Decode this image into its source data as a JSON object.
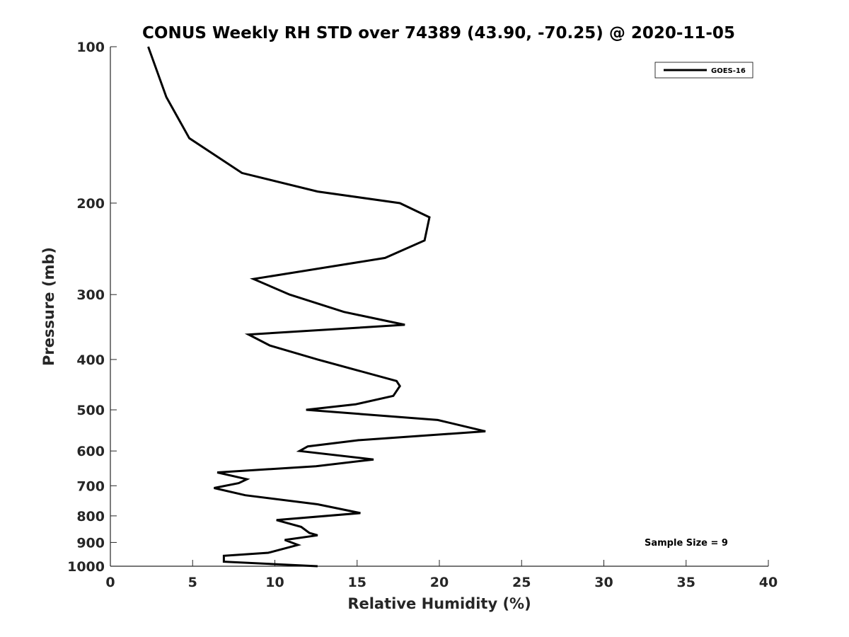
{
  "chart_data": {
    "type": "line",
    "title": "CONUS Weekly RH STD over 74389 (43.90, -70.25) @ 2020-11-05",
    "xlabel": "Relative Humidity (%)",
    "ylabel": "Pressure (mb)",
    "xlim": [
      0,
      40
    ],
    "ylim": [
      100,
      1000
    ],
    "y_scale": "log",
    "y_reversed": true,
    "x_ticks": [
      "0",
      "5",
      "10",
      "15",
      "20",
      "25",
      "30",
      "35",
      "40"
    ],
    "y_ticks": [
      "100",
      "200",
      "300",
      "400",
      "500",
      "600",
      "700",
      "800",
      "900",
      "1000"
    ],
    "grid": false,
    "legend_position": "top-right",
    "annotation": "Sample Size = 9",
    "series": [
      {
        "name": "GOES-16",
        "color": "#000000",
        "points": [
          [
            2.3,
            100
          ],
          [
            3.4,
            125
          ],
          [
            4.8,
            150
          ],
          [
            8.0,
            175
          ],
          [
            12.6,
            190
          ],
          [
            17.6,
            200
          ],
          [
            19.4,
            213
          ],
          [
            19.1,
            236
          ],
          [
            16.7,
            255
          ],
          [
            8.7,
            280
          ],
          [
            10.9,
            300
          ],
          [
            14.2,
            324
          ],
          [
            17.9,
            343
          ],
          [
            8.4,
            358
          ],
          [
            9.7,
            376
          ],
          [
            12.6,
            400
          ],
          [
            17.4,
            440
          ],
          [
            17.6,
            450
          ],
          [
            17.2,
            470
          ],
          [
            14.9,
            488
          ],
          [
            11.9,
            500
          ],
          [
            19.9,
            523
          ],
          [
            22.8,
            550
          ],
          [
            15.1,
            572
          ],
          [
            12.0,
            588
          ],
          [
            11.5,
            600
          ],
          [
            16.0,
            623
          ],
          [
            12.5,
            642
          ],
          [
            6.5,
            660
          ],
          [
            8.3,
            680
          ],
          [
            7.8,
            692
          ],
          [
            6.3,
            707
          ],
          [
            8.2,
            730
          ],
          [
            12.6,
            760
          ],
          [
            15.2,
            790
          ],
          [
            10.1,
            815
          ],
          [
            11.6,
            840
          ],
          [
            12.1,
            863
          ],
          [
            12.6,
            872
          ],
          [
            10.6,
            890
          ],
          [
            11.4,
            910
          ],
          [
            9.6,
            942
          ],
          [
            6.9,
            955
          ],
          [
            6.9,
            980
          ],
          [
            12.6,
            1000
          ]
        ]
      }
    ]
  }
}
